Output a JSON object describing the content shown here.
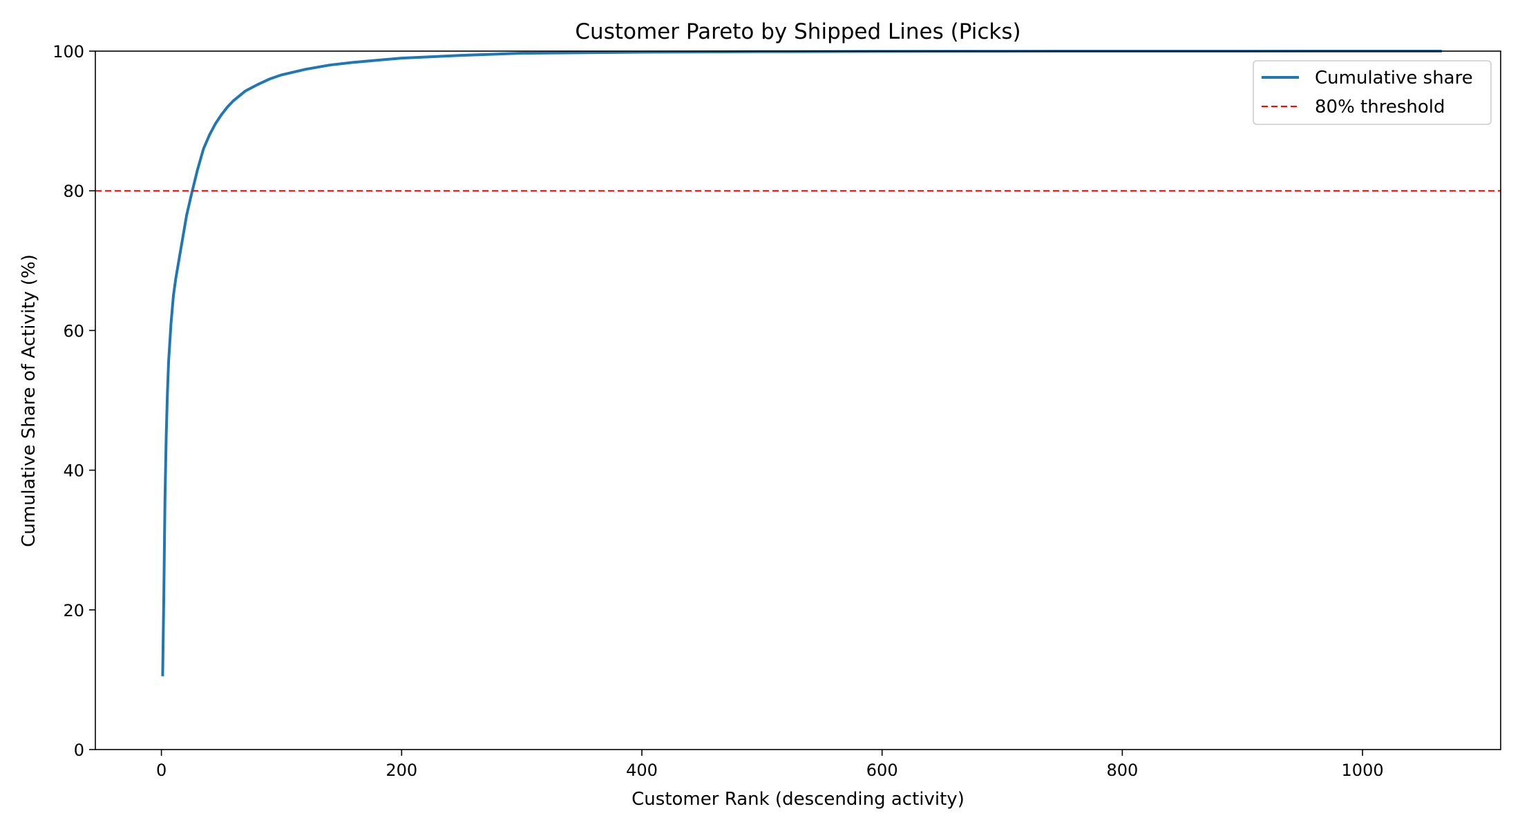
{
  "chart_data": {
    "type": "line",
    "title": "Customer Pareto by Shipped Lines (Picks)",
    "xlabel": "Customer Rank (descending activity)",
    "ylabel": "Cumulative Share of Activity (%)",
    "xlim": [
      -55,
      1115
    ],
    "ylim": [
      0,
      100
    ],
    "xticks": [
      0,
      200,
      400,
      600,
      800,
      1000
    ],
    "yticks": [
      0,
      20,
      40,
      60,
      80,
      100
    ],
    "grid": false,
    "legend_position": "top-right",
    "series": [
      {
        "name": "Cumulative share",
        "color": "#1f77b4",
        "x": [
          1,
          2,
          3,
          4,
          5,
          6,
          8,
          10,
          12,
          15,
          18,
          21,
          25,
          30,
          35,
          40,
          45,
          50,
          55,
          60,
          70,
          80,
          90,
          100,
          120,
          140,
          160,
          180,
          200,
          250,
          300,
          400,
          500,
          600,
          700,
          800,
          900,
          1000,
          1066
        ],
        "y": [
          10.5,
          22,
          36,
          45,
          51,
          55.5,
          61,
          65,
          67.5,
          70.5,
          73.5,
          76.5,
          79.5,
          83,
          86,
          88,
          89.6,
          90.9,
          92,
          92.9,
          94.3,
          95.2,
          96,
          96.6,
          97.4,
          98,
          98.4,
          98.7,
          99,
          99.4,
          99.7,
          99.85,
          99.92,
          99.96,
          99.98,
          99.99,
          99.995,
          100,
          100
        ]
      }
    ],
    "reference_lines": [
      {
        "name": "80% threshold",
        "orientation": "horizontal",
        "y": 80,
        "color": "#ff0000",
        "style": "dashed"
      }
    ]
  }
}
